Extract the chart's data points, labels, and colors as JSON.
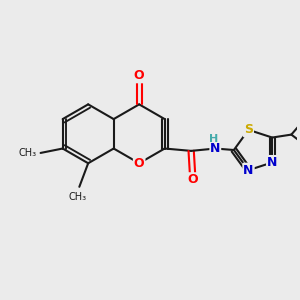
{
  "background_color": "#ebebeb",
  "bond_color": "#1a1a1a",
  "bond_width": 1.5,
  "atom_colors": {
    "O": "#ff0000",
    "N": "#0000cc",
    "S": "#ccaa00",
    "H": "#44aaaa",
    "C": "#1a1a1a"
  },
  "font_size": 9
}
